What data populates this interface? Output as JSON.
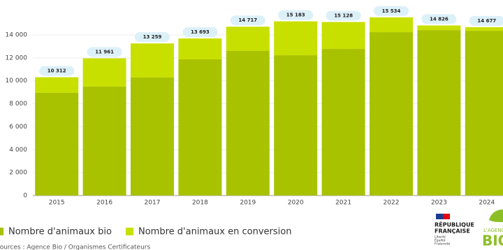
{
  "chart_data": {
    "type": "stacked_bar",
    "categories": [
      "2015",
      "2016",
      "2017",
      "2018",
      "2019",
      "2020",
      "2021",
      "2022",
      "2023",
      "2024"
    ],
    "series": [
      {
        "name": "Nombre d'animaux bio",
        "color": "#a9c200",
        "values": [
          8950,
          9500,
          10290,
          11870,
          12600,
          12230,
          12780,
          14240,
          14420,
          14360
        ]
      },
      {
        "name": "Nombre d'animaux en conversion",
        "color": "#c8e000",
        "values": [
          1362,
          2461,
          2969,
          1823,
          2117,
          2953,
          2348,
          1294,
          406,
          317
        ]
      }
    ],
    "totals": [
      10312,
      11961,
      13259,
      13693,
      14717,
      15183,
      15128,
      15534,
      14826,
      14677
    ],
    "total_labels": [
      "10 312",
      "11 961",
      "13 259",
      "13 693",
      "14 717",
      "15 183",
      "15 128",
      "15 534",
      "14 826",
      "14 677"
    ],
    "ylim": [
      0,
      15500
    ],
    "yticks": [
      0,
      {
        "value": 2000,
        "label": "2 000"
      },
      {
        "value": 4000,
        "label": "4 000"
      },
      {
        "value": 6000,
        "label": "6 000"
      },
      {
        "value": 8000,
        "label": "8 000"
      },
      {
        "value": 10000,
        "label": "10 000"
      },
      {
        "value": 12000,
        "label": "12 000"
      },
      {
        "value": 14000,
        "label": "14 000"
      }
    ],
    "grid": true,
    "source": "Sources : Agence Bio / Organismes Certificateurs"
  },
  "logos": {
    "republique": [
      "RÉPUBLIQUE",
      "FRANÇAISE"
    ],
    "motto": [
      "Liberté",
      "Égalité",
      "Fraternité"
    ],
    "agence": [
      "L'AGENCE",
      "BIO"
    ]
  }
}
